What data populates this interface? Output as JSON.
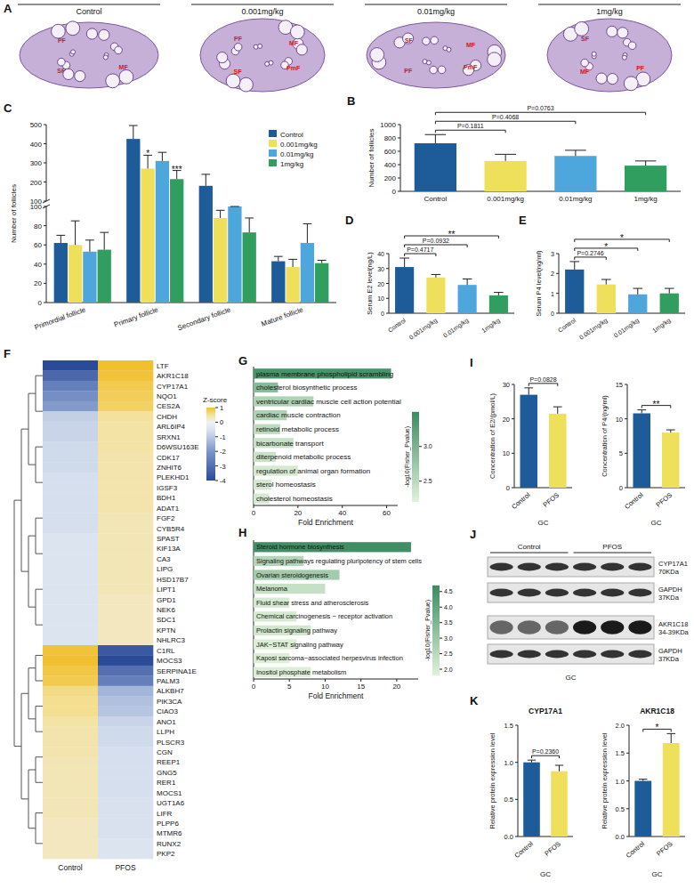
{
  "chart_data": [
    {
      "panel": "A",
      "type": "image",
      "titles": [
        "Control",
        "0.001mg/kg",
        "0.01mg/kg",
        "1mg/kg"
      ],
      "labels": [
        [
          "MF",
          "SF",
          "PF"
        ],
        [
          "PmF",
          "SF",
          "PF",
          "MF"
        ],
        [
          "PmF",
          "PF",
          "SF",
          "MF"
        ],
        [
          "PF",
          "MF",
          "SF"
        ]
      ]
    },
    {
      "panel": "B",
      "type": "bar",
      "y_label": "Number of follicles",
      "categories": [
        "Control",
        "0.001mg/kg",
        "0.01mg/kg",
        "1mg/kg"
      ],
      "values": [
        720,
        455,
        530,
        385
      ],
      "errors": [
        130,
        100,
        85,
        70
      ],
      "colors": [
        "#1d5c99",
        "#efe05c",
        "#4da6dc",
        "#2f9e5e"
      ],
      "ylim": [
        0,
        1000
      ],
      "yticks": [
        0,
        200,
        400,
        600,
        800,
        1000
      ],
      "annotations": [
        {
          "text": "P=0.1811",
          "between": [
            "Control",
            "0.001mg/kg"
          ]
        },
        {
          "text": "P=0.4068",
          "between": [
            "Control",
            "0.01mg/kg"
          ]
        },
        {
          "text": "P=0.0763",
          "between": [
            "Control",
            "1mg/kg"
          ]
        }
      ]
    },
    {
      "panel": "C",
      "type": "grouped_bar",
      "y_label": "Number of follicles",
      "categories": [
        "Primordial follicle",
        "Primary follicle",
        "Secondary follicle",
        "Mature follicle"
      ],
      "series": [
        {
          "name": "Control",
          "color": "#1d5c99",
          "values": [
            62,
            425,
            180,
            43
          ],
          "errors": [
            8,
            70,
            60,
            5
          ]
        },
        {
          "name": "0.001mg/kg",
          "color": "#efe05c",
          "values": [
            60,
            270,
            88,
            37
          ],
          "errors": [
            25,
            70,
            8,
            8
          ]
        },
        {
          "name": "0.01mg/kg",
          "color": "#4da6dc",
          "values": [
            53,
            310,
            100,
            62
          ],
          "errors": [
            12,
            45,
            0,
            20
          ]
        },
        {
          "name": "1mg/kg",
          "color": "#2f9e5e",
          "values": [
            55,
            215,
            73,
            41
          ],
          "errors": [
            18,
            45,
            15,
            3
          ]
        }
      ],
      "ylim": [
        0,
        500
      ],
      "yticks": [
        0,
        20,
        40,
        60,
        80,
        100,
        200,
        300,
        400,
        500
      ],
      "legend": "top-right",
      "annotations": [
        {
          "text": "*",
          "category": "Primary follicle",
          "series": "0.001mg/kg"
        },
        {
          "text": "***",
          "category": "Primary follicle",
          "series": "1mg/kg"
        }
      ]
    },
    {
      "panel": "D",
      "type": "bar",
      "y_label": "Serum E2 level(ng/L)",
      "categories": [
        "Control",
        "0.001mg/kg",
        "0.01mg/kg",
        "1mg/kg"
      ],
      "values": [
        31,
        24,
        19,
        12
      ],
      "errors": [
        6,
        2,
        4,
        2
      ],
      "colors": [
        "#1d5c99",
        "#efe05c",
        "#4da6dc",
        "#2f9e5e"
      ],
      "ylim": [
        0,
        40
      ],
      "yticks": [
        0,
        10,
        20,
        30,
        40
      ],
      "annotations": [
        {
          "text": "P=0.4717",
          "between": [
            "Control",
            "0.001mg/kg"
          ]
        },
        {
          "text": "P=0.0932",
          "between": [
            "Control",
            "0.01mg/kg"
          ]
        },
        {
          "text": "**",
          "between": [
            "Control",
            "1mg/kg"
          ]
        }
      ]
    },
    {
      "panel": "E",
      "type": "bar",
      "y_label": "Serum P4 level(ng/ml)",
      "categories": [
        "Control",
        "0.001mg/kg",
        "0.01mg/kg",
        "1mg/kg"
      ],
      "values": [
        2.2,
        1.45,
        0.95,
        1.0
      ],
      "errors": [
        0.4,
        0.25,
        0.3,
        0.25
      ],
      "colors": [
        "#1d5c99",
        "#efe05c",
        "#4da6dc",
        "#2f9e5e"
      ],
      "ylim": [
        0,
        3
      ],
      "yticks": [
        0,
        1,
        2,
        3
      ],
      "annotations": [
        {
          "text": "P=0.2746",
          "between": [
            "Control",
            "0.001mg/kg"
          ]
        },
        {
          "text": "*",
          "between": [
            "Control",
            "0.01mg/kg"
          ]
        },
        {
          "text": "*",
          "between": [
            "Control",
            "1mg/kg"
          ]
        }
      ]
    },
    {
      "panel": "F",
      "type": "heatmap",
      "columns": [
        "Control",
        "PFOS"
      ],
      "rows": [
        "LTF",
        "AKR1C18",
        "CYP17A1",
        "NQO1",
        "CES2A",
        "CHDH",
        "ARL6IP4",
        "SRXN1",
        "D6WSU163E",
        "CDK17",
        "ZNHIT6",
        "PLEKHD1",
        "IGSF3",
        "BDH1",
        "ADAT1",
        "FGF2",
        "CYB5R4",
        "SPAST",
        "KIF13A",
        "CA3",
        "LIPG",
        "HSD17B7",
        "LIPT1",
        "GPD1",
        "NEK6",
        "SDC1",
        "KPTN",
        "NHLRC3",
        "C1RL",
        "MOCS3",
        "SERPINA1E",
        "PALM3",
        "ALKBH7",
        "PIK3CA",
        "CIAO3",
        "ANO1",
        "LLPH",
        "PLSCR3",
        "CGN",
        "REEP1",
        "GNG5",
        "RER1",
        "MOCS1",
        "UGT1A6",
        "LIFR",
        "PLPP6",
        "MTMR6",
        "RUNX2",
        "PKP2"
      ],
      "cells": [
        [
          -4,
          1
        ],
        [
          -3.2,
          0.95
        ],
        [
          -2.6,
          0.85
        ],
        [
          -2.2,
          0.8
        ],
        [
          -1.9,
          0.75
        ],
        [
          -0.9,
          0.5
        ],
        [
          -0.8,
          0.45
        ],
        [
          -0.8,
          0.45
        ],
        [
          -0.7,
          0.45
        ],
        [
          -0.7,
          0.4
        ],
        [
          -0.7,
          0.4
        ],
        [
          -0.6,
          0.4
        ],
        [
          -0.6,
          0.4
        ],
        [
          -0.6,
          0.4
        ],
        [
          -0.6,
          0.4
        ],
        [
          -0.6,
          0.35
        ],
        [
          -0.6,
          0.35
        ],
        [
          -0.5,
          0.35
        ],
        [
          -0.5,
          0.35
        ],
        [
          -0.5,
          0.35
        ],
        [
          -0.5,
          0.35
        ],
        [
          -0.5,
          0.35
        ],
        [
          -0.5,
          0.35
        ],
        [
          -0.5,
          0.3
        ],
        [
          -0.5,
          0.3
        ],
        [
          -0.5,
          0.3
        ],
        [
          -0.5,
          0.3
        ],
        [
          -0.5,
          0.3
        ],
        [
          0.95,
          -3.6
        ],
        [
          1,
          -4
        ],
        [
          0.9,
          -3
        ],
        [
          0.85,
          -2.6
        ],
        [
          0.6,
          -1.4
        ],
        [
          0.55,
          -1.2
        ],
        [
          0.55,
          -1.1
        ],
        [
          0.45,
          -0.8
        ],
        [
          0.4,
          -0.7
        ],
        [
          0.4,
          -0.7
        ],
        [
          0.4,
          -0.6
        ],
        [
          0.35,
          -0.6
        ],
        [
          0.35,
          -0.6
        ],
        [
          0.35,
          -0.6
        ],
        [
          0.35,
          -0.6
        ],
        [
          0.35,
          -0.55
        ],
        [
          0.35,
          -0.55
        ],
        [
          0.3,
          -0.55
        ],
        [
          0.3,
          -0.55
        ],
        [
          0.3,
          -0.5
        ],
        [
          0.3,
          -0.5
        ]
      ],
      "colorbar": {
        "title": "Z-score",
        "range": [
          -4,
          1
        ],
        "ticks": [
          1,
          0,
          -1,
          -2,
          -3,
          -4
        ]
      }
    },
    {
      "panel": "G",
      "type": "bar",
      "orientation": "horizontal",
      "x_label": "Fold Enrichment",
      "categories": [
        "plasma membrane phospholipid scrambling",
        "cholesterol biosynthetic process",
        "ventricular cardiac muscle cell action potential",
        "cardiac muscle contraction",
        "retinoid metabolic process",
        "bicarbonate transport",
        "diterpenoid metabolic process",
        "regulation of animal organ formation",
        "sterol homeostasis",
        "cholesterol homeostasis"
      ],
      "values": [
        62,
        11,
        27,
        15,
        12,
        18,
        10,
        20,
        8,
        7
      ],
      "color_values": [
        3.4,
        2.9,
        2.6,
        2.6,
        2.5,
        2.4,
        2.4,
        2.3,
        2.3,
        2.3
      ],
      "colorbar": {
        "title": "-log10(Fisher_Pvalue)",
        "range": [
          2.2,
          3.5
        ],
        "ticks": [
          2.5,
          {
            "value": 3,
            "label": "3.0"
          }
        ]
      },
      "xlim": [
        0,
        65
      ],
      "xticks": [
        0,
        20,
        40,
        60
      ]
    },
    {
      "panel": "H",
      "type": "bar",
      "orientation": "horizontal",
      "x_label": "Fold Enrichment",
      "categories": [
        "Steroid hormone biosynthesis",
        "Signaling pathways regulating pluripotency of stem cells",
        "Ovarian steroidogenesis",
        "Melanoma",
        "Fluid shear stress and atherosclerosis",
        "Chemical carcinogenesis − receptor activation",
        "Prolactin signaling pathway",
        "JAK−STAT signaling pathway",
        "Kaposi sarcoma−associated herpesvirus infection",
        "Inositol phosphate metabolism"
      ],
      "values": [
        22,
        7,
        12,
        10,
        5,
        6,
        8,
        6,
        5,
        8
      ],
      "color_values": [
        4.6,
        2.6,
        2.9,
        2.3,
        2.0,
        2.0,
        2.1,
        1.9,
        1.9,
        1.9
      ],
      "colorbar": {
        "title": "-log10(Fisher_Pvalue)",
        "range": [
          1.8,
          4.7
        ],
        "ticks": [
          {
            "value": 2,
            "label": "2.0"
          },
          2.5,
          {
            "value": 3,
            "label": "3.0"
          },
          3.5,
          {
            "value": 4,
            "label": "4.0"
          },
          4.5
        ]
      },
      "xlim": [
        0,
        23
      ],
      "xticks": [
        0,
        5,
        10,
        15,
        20
      ]
    },
    {
      "panel": "I",
      "type": "bar",
      "y_label": "Concentration of E2/(pmol/L)",
      "x_label": "GC",
      "categories": [
        "Control",
        "PFOS"
      ],
      "values": [
        27,
        21.5
      ],
      "errors": [
        2,
        2
      ],
      "colors": [
        "#1d5c99",
        "#efe05c"
      ],
      "ylim": [
        0,
        30
      ],
      "yticks": [
        0,
        10,
        20,
        30
      ],
      "annotations": [
        {
          "text": "P=0.0828",
          "between": [
            "Control",
            "PFOS"
          ]
        }
      ]
    },
    {
      "type": "bar",
      "y_label": "Concentration of P4/(ng/ml)",
      "x_label": "GC",
      "categories": [
        "Control",
        "PFOS"
      ],
      "values": [
        10.8,
        8.0
      ],
      "errors": [
        0.5,
        0.4
      ],
      "colors": [
        "#1d5c99",
        "#efe05c"
      ],
      "ylim": [
        0,
        15
      ],
      "yticks": [
        0,
        5,
        10,
        15
      ],
      "annotations": [
        {
          "text": "**",
          "between": [
            "Control",
            "PFOS"
          ]
        }
      ]
    },
    {
      "panel": "J",
      "type": "blot",
      "columns": [
        "Control",
        "PFOS"
      ],
      "rows": [
        {
          "name": "CYP17A1",
          "size": "70KDa"
        },
        {
          "name": "GAPDH",
          "size": "37KDa"
        },
        {
          "name": "AKR1C18",
          "size": "34-39KDa"
        },
        {
          "name": "GAPDH",
          "size": "37KDa"
        }
      ],
      "x_label": "GC"
    },
    {
      "panel": "K",
      "type": "bar",
      "title": "CYP17A1",
      "y_label": "Relative protein expression level",
      "x_label": "GC",
      "categories": [
        "Control",
        "PFOS"
      ],
      "values": [
        1.0,
        0.88
      ],
      "errors": [
        0.03,
        0.08
      ],
      "colors": [
        "#1d5c99",
        "#efe05c"
      ],
      "ylim": [
        0,
        1.5
      ],
      "yticks": [
        {
          "value": 0,
          "label": "0.0"
        },
        0.5,
        {
          "value": 1,
          "label": "1.0"
        },
        1.5
      ],
      "annotations": [
        {
          "text": "P=0.2360",
          "between": [
            "Control",
            "PFOS"
          ]
        }
      ]
    },
    {
      "type": "bar",
      "title": "AKR1C18",
      "y_label": "Relative protein expression level",
      "x_label": "GC",
      "categories": [
        "Control",
        "PFOS"
      ],
      "values": [
        1.0,
        1.68
      ],
      "errors": [
        0.03,
        0.17
      ],
      "colors": [
        "#1d5c99",
        "#efe05c"
      ],
      "ylim": [
        0,
        2
      ],
      "yticks": [
        {
          "value": 0,
          "label": "0.0"
        },
        0.5,
        {
          "value": 1,
          "label": "1.0"
        },
        1.5,
        {
          "value": 2,
          "label": "2.0"
        }
      ],
      "annotations": [
        {
          "text": "*",
          "between": [
            "Control",
            "PFOS"
          ]
        }
      ]
    }
  ]
}
